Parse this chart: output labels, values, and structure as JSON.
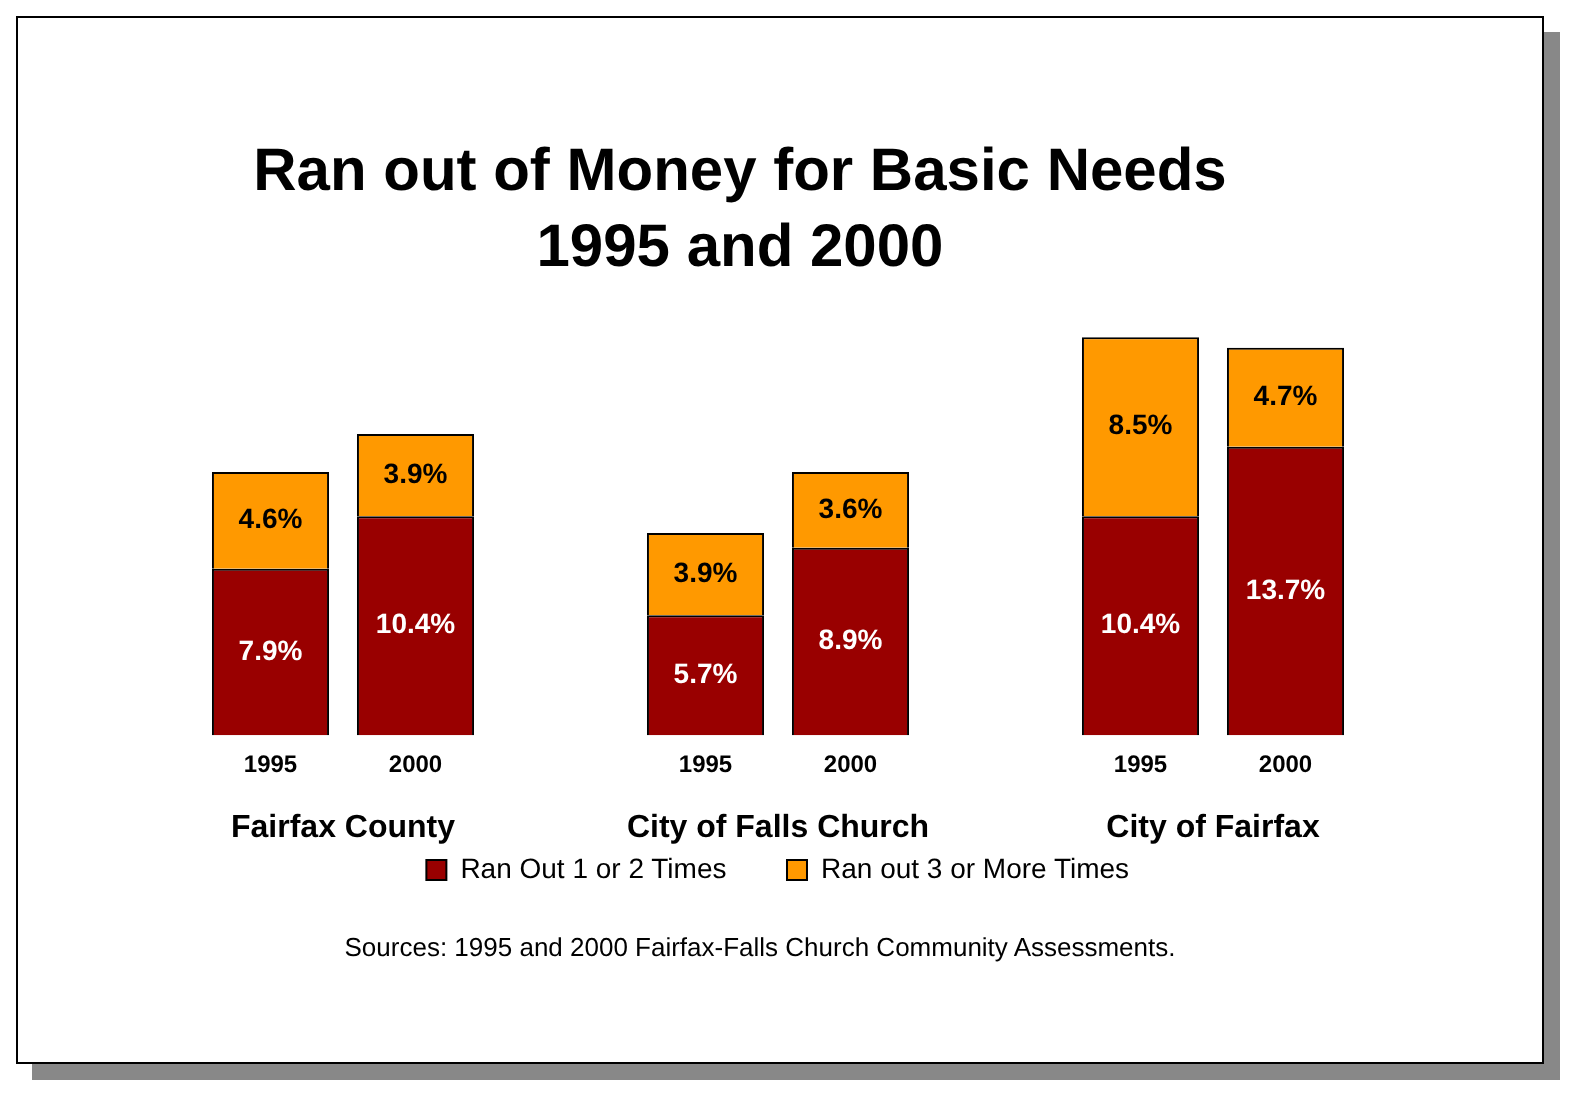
{
  "chart_data": {
    "type": "bar",
    "title": "Ran out of Money for Basic Needs",
    "subtitle": "1995 and 2000",
    "categories": [
      "1995",
      "2000",
      null,
      "1995",
      "2000",
      null,
      "1995",
      "2000"
    ],
    "stacked": true,
    "legend": "bottom",
    "grid": false,
    "series": [
      {
        "name": "Ran Out 1 or 2 Times",
        "color": "#990000",
        "values": [
          7.9,
          10.4,
          null,
          5.7,
          8.9,
          null,
          10.4,
          13.7
        ],
        "value_labels": [
          "7.9%",
          "10.4%",
          null,
          "5.7%",
          "8.9%",
          null,
          "10.4%",
          "13.7%"
        ]
      },
      {
        "name": "Ran out 3 or More Times",
        "color": "#ff9900",
        "values": [
          4.6,
          3.9,
          null,
          3.9,
          3.6,
          null,
          8.5,
          4.7
        ],
        "value_labels": [
          "4.6%",
          "3.9%",
          null,
          "3.9%",
          "3.6%",
          null,
          "8.5%",
          "4.7%"
        ]
      }
    ],
    "annotations": [
      "Fairfax County",
      "City of Falls Church",
      "City of Fairfax",
      "Sources:  1995 and 2000 Fairfax-Falls Church Community Assessments."
    ]
  }
}
